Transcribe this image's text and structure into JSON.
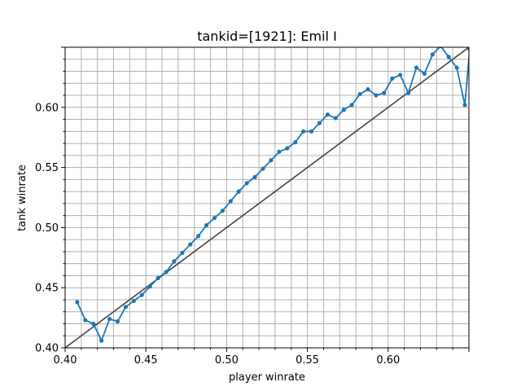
{
  "chart_data": {
    "type": "line",
    "title": "tankid=[1921]: Emil I",
    "xlabel": "player winrate",
    "ylabel": "tank winrate",
    "xlim": [
      0.4,
      0.65
    ],
    "ylim": [
      0.4,
      0.65
    ],
    "x_ticks": [
      "0.40",
      "0.45",
      "0.50",
      "0.55",
      "0.60"
    ],
    "y_ticks": [
      "0.40",
      "0.45",
      "0.50",
      "0.55",
      "0.60"
    ],
    "grid": true,
    "grid_minor": true,
    "legend": "none",
    "series": [
      {
        "color": "#1f77b4",
        "marker": "circle",
        "x": [
          0.4075,
          0.4125,
          0.4175,
          0.4225,
          0.4275,
          0.4325,
          0.4375,
          0.4425,
          0.4475,
          0.4525,
          0.4575,
          0.4625,
          0.4675,
          0.4725,
          0.4775,
          0.4825,
          0.4875,
          0.4925,
          0.4975,
          0.5025,
          0.5075,
          0.5125,
          0.5175,
          0.5225,
          0.5275,
          0.5325,
          0.5375,
          0.5425,
          0.5475,
          0.5525,
          0.5575,
          0.5625,
          0.5675,
          0.5725,
          0.5775,
          0.5825,
          0.5875,
          0.5925,
          0.5975,
          0.6025,
          0.6075,
          0.6125,
          0.6175,
          0.6225,
          0.6275,
          0.6325,
          0.6375,
          0.6425,
          0.6475,
          0.6505
        ],
        "y": [
          0.438,
          0.423,
          0.42,
          0.406,
          0.424,
          0.422,
          0.434,
          0.439,
          0.444,
          0.451,
          0.458,
          0.463,
          0.472,
          0.479,
          0.486,
          0.493,
          0.502,
          0.508,
          0.514,
          0.522,
          0.53,
          0.537,
          0.542,
          0.549,
          0.556,
          0.563,
          0.566,
          0.571,
          0.58,
          0.58,
          0.587,
          0.594,
          0.591,
          0.598,
          0.602,
          0.611,
          0.615,
          0.61,
          0.612,
          0.624,
          0.627,
          0.612,
          0.633,
          0.628,
          0.644,
          0.651,
          0.642,
          0.633,
          0.602,
          0.648
        ]
      },
      {
        "color": "#444444",
        "marker": "none",
        "x": [
          0.4,
          0.65
        ],
        "y": [
          0.4,
          0.65
        ]
      }
    ]
  }
}
